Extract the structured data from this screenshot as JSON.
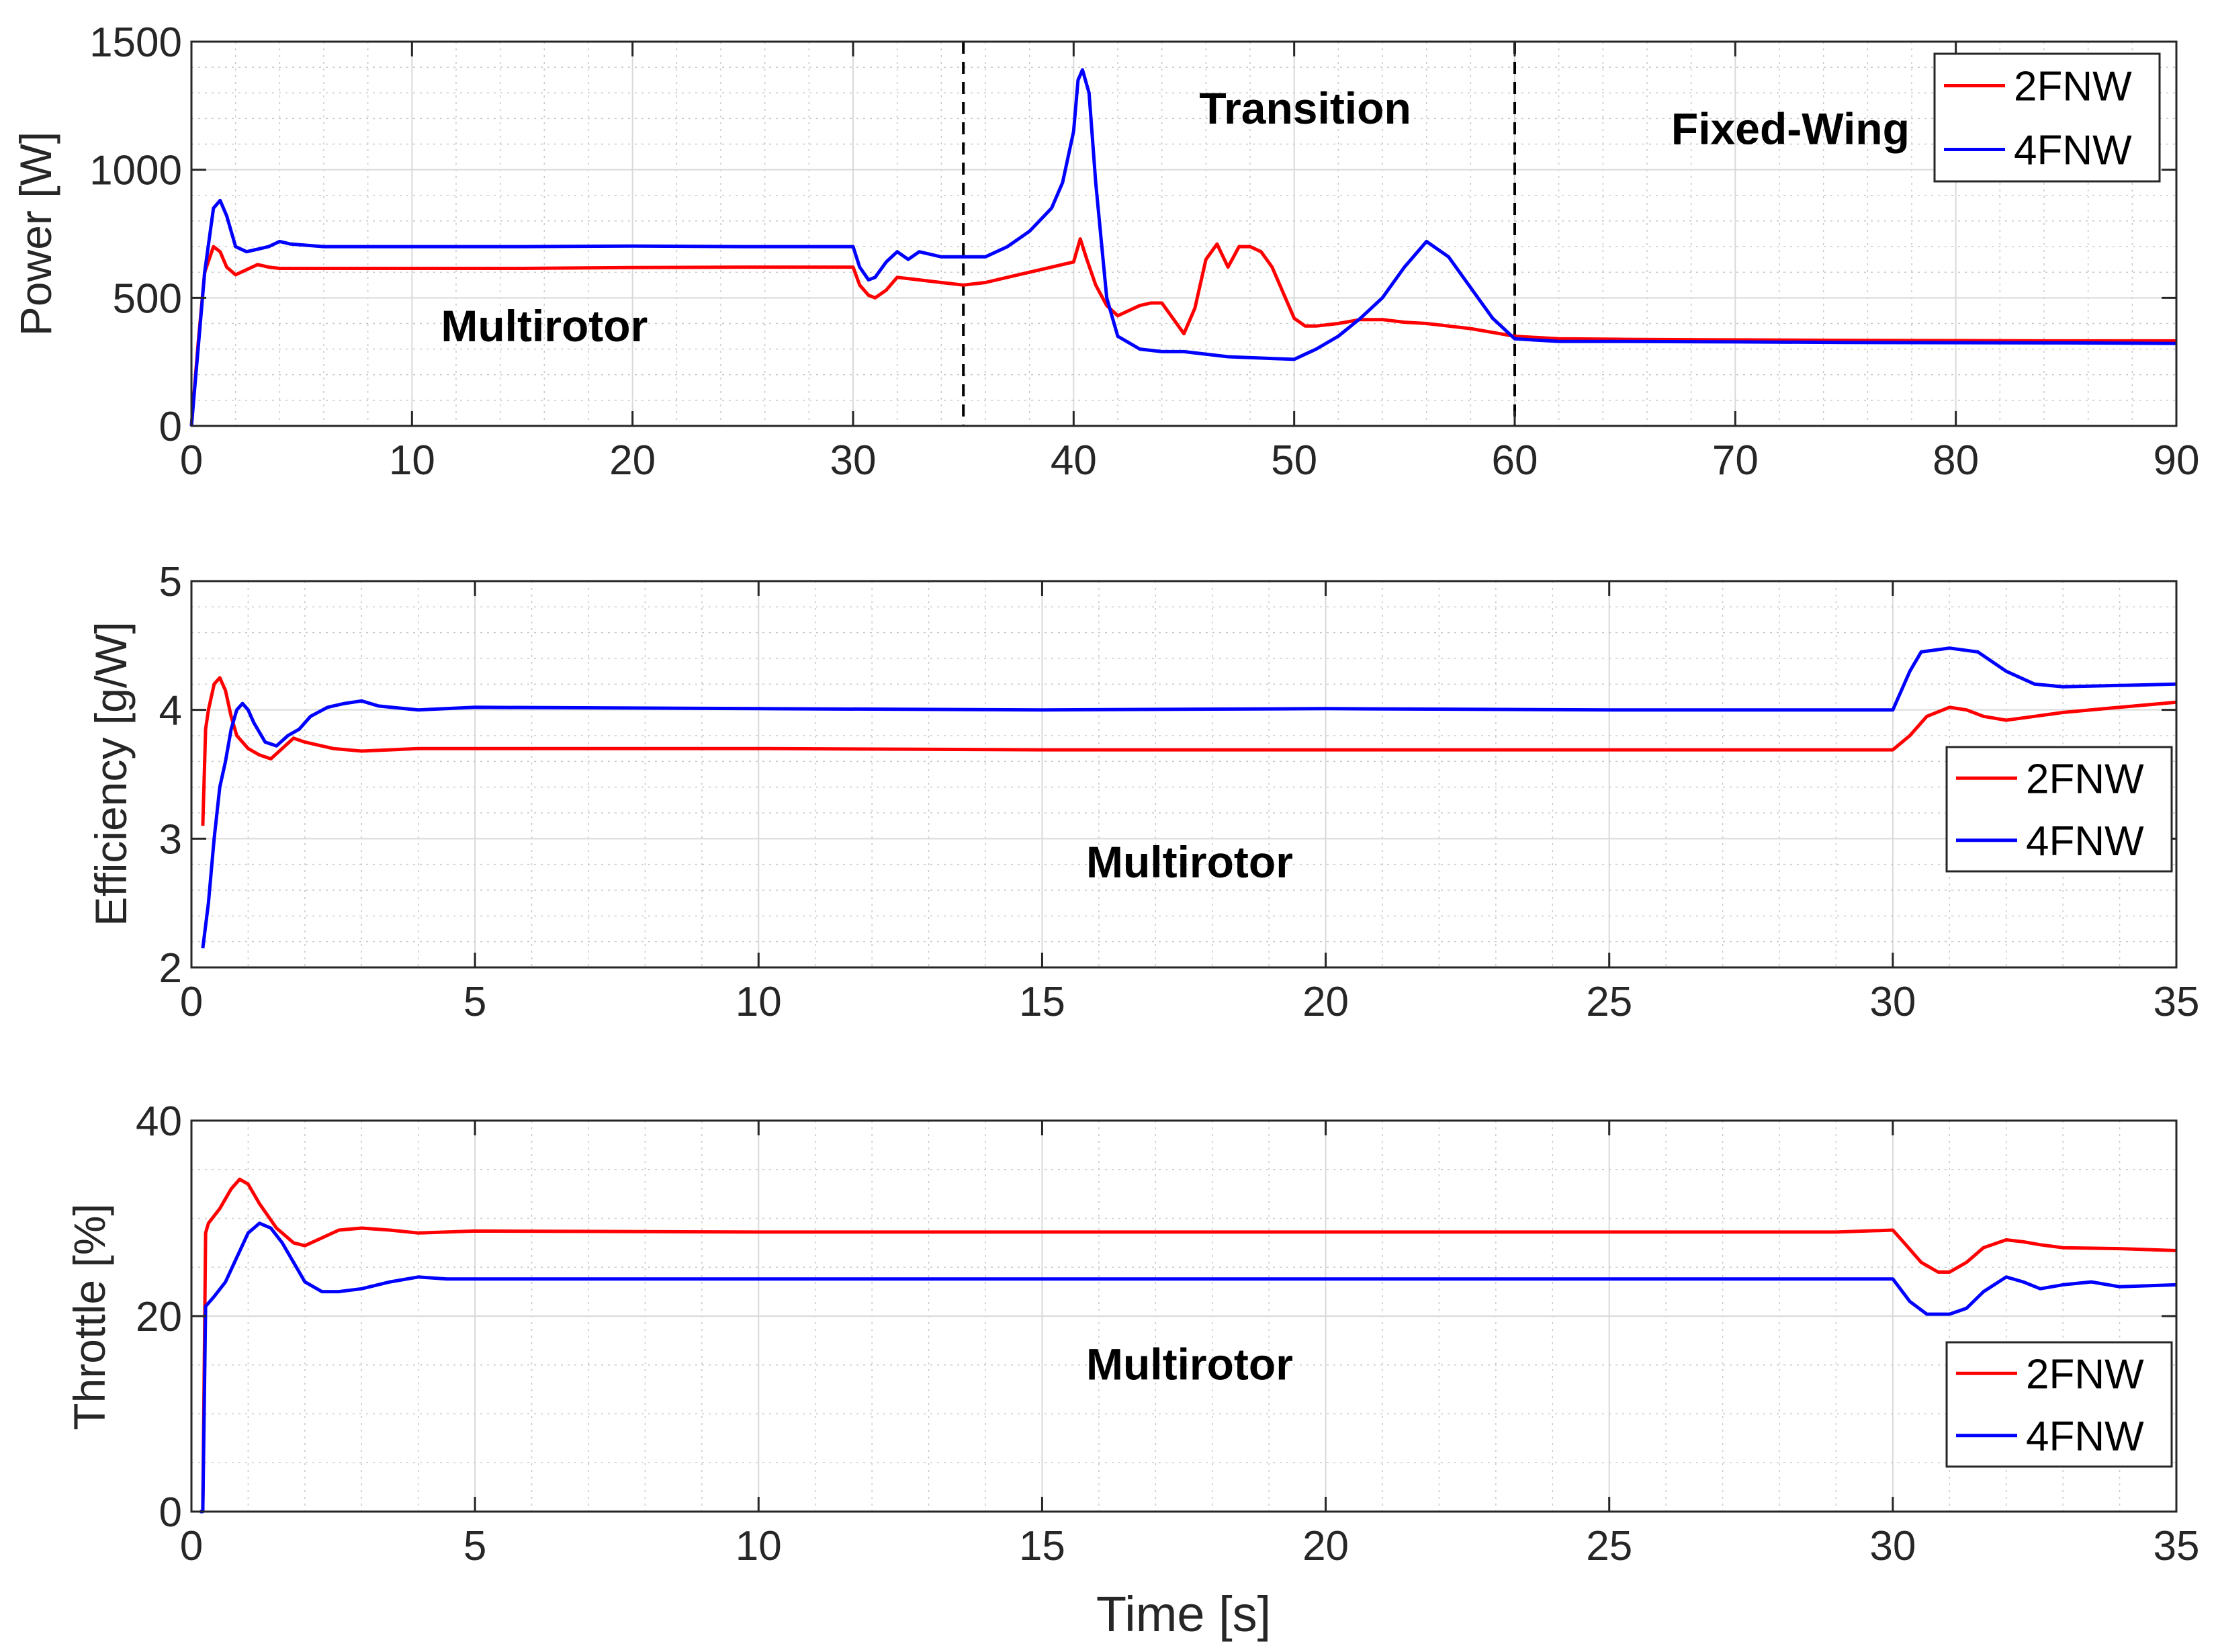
{
  "chart_data": [
    {
      "type": "line",
      "ylabel": "Power [W]",
      "xlabel": "",
      "xlim": [
        0,
        90
      ],
      "ylim": [
        0,
        1500
      ],
      "xticks": [
        "0",
        "10",
        "20",
        "30",
        "40",
        "50",
        "60",
        "70",
        "80",
        "90"
      ],
      "yticks": [
        "0",
        "500",
        "1000",
        "1500"
      ],
      "grid": true,
      "legend_location": "top-right",
      "vertical_lines": [
        35,
        60
      ],
      "annotations": [
        {
          "text": "Multirotor",
          "x": 16,
          "y": 330
        },
        {
          "text": "Transition",
          "x": 50.5,
          "y": 1180
        },
        {
          "text": "Fixed-Wing",
          "x": 72.5,
          "y": 1100
        }
      ],
      "series": [
        {
          "name": "2FNW",
          "color": "#ff0000",
          "x": [
            0,
            0.3,
            0.6,
            1,
            1.3,
            1.6,
            2,
            2.5,
            3,
            3.5,
            4,
            6,
            10,
            15,
            20,
            25,
            29,
            30,
            30.3,
            30.7,
            31,
            31.5,
            32,
            33,
            34,
            35,
            36,
            37,
            38,
            39,
            40,
            40.3,
            40.6,
            41,
            41.5,
            42,
            42.5,
            43,
            43.5,
            44,
            44.5,
            45,
            45.5,
            46,
            46.5,
            47,
            47.5,
            48,
            48.5,
            49,
            50,
            50.5,
            51,
            52,
            53,
            54,
            55,
            56,
            57,
            58,
            59,
            60,
            62,
            65,
            70,
            75,
            80,
            85,
            90
          ],
          "values": [
            0,
            320,
            600,
            700,
            680,
            620,
            590,
            610,
            630,
            620,
            615,
            615,
            615,
            615,
            618,
            620,
            620,
            620,
            550,
            510,
            500,
            530,
            580,
            570,
            560,
            550,
            560,
            580,
            600,
            620,
            640,
            730,
            650,
            550,
            470,
            430,
            450,
            470,
            480,
            480,
            420,
            360,
            460,
            650,
            710,
            620,
            700,
            700,
            680,
            620,
            420,
            390,
            390,
            400,
            415,
            415,
            405,
            400,
            390,
            380,
            365,
            350,
            340,
            338,
            336,
            334,
            333,
            332,
            332
          ]
        },
        {
          "name": "4FNW",
          "color": "#0000ff",
          "x": [
            0,
            0.3,
            0.6,
            1,
            1.3,
            1.6,
            2,
            2.5,
            3,
            3.5,
            4,
            4.5,
            6,
            10,
            15,
            20,
            25,
            29,
            30,
            30.3,
            30.7,
            31,
            31.5,
            32,
            32.5,
            33,
            34,
            35,
            36,
            37,
            38,
            39,
            39.5,
            40,
            40.2,
            40.4,
            40.7,
            41,
            41.5,
            42,
            43,
            44,
            45,
            47,
            50,
            50.5,
            51,
            52,
            53,
            54,
            55,
            56,
            57,
            58,
            59,
            60,
            62,
            65,
            70,
            75,
            80,
            85,
            90
          ],
          "values": [
            0,
            300,
            600,
            850,
            880,
            820,
            700,
            680,
            690,
            700,
            720,
            710,
            700,
            700,
            700,
            702,
            700,
            700,
            700,
            620,
            570,
            580,
            640,
            680,
            650,
            680,
            660,
            660,
            660,
            700,
            760,
            850,
            950,
            1150,
            1350,
            1390,
            1300,
            950,
            500,
            350,
            300,
            290,
            290,
            270,
            260,
            280,
            300,
            350,
            420,
            500,
            620,
            720,
            660,
            540,
            420,
            340,
            330,
            330,
            328,
            326,
            325,
            324,
            322
          ]
        }
      ]
    },
    {
      "type": "line",
      "ylabel": "Efficiency [g/W]",
      "xlabel": "",
      "xlim": [
        0,
        35
      ],
      "ylim": [
        2,
        5
      ],
      "xticks": [
        "0",
        "5",
        "10",
        "15",
        "20",
        "25",
        "30",
        "35"
      ],
      "yticks": [
        "2",
        "3",
        "4",
        "5"
      ],
      "grid": true,
      "legend_location": "right-middle",
      "annotations": [
        {
          "text": "Multirotor",
          "x": 17.6,
          "y": 2.7
        }
      ],
      "series": [
        {
          "name": "2FNW",
          "color": "#ff0000",
          "x": [
            0.2,
            0.25,
            0.3,
            0.4,
            0.5,
            0.6,
            0.7,
            0.8,
            0.9,
            1.0,
            1.2,
            1.4,
            1.6,
            1.8,
            2.0,
            2.5,
            3,
            4,
            5,
            10,
            15,
            20,
            25,
            29,
            30,
            30.3,
            30.6,
            31,
            31.3,
            31.6,
            32,
            32.5,
            33,
            34,
            35
          ],
          "values": [
            3.1,
            3.85,
            4.0,
            4.2,
            4.25,
            4.15,
            3.95,
            3.8,
            3.75,
            3.7,
            3.65,
            3.62,
            3.7,
            3.78,
            3.75,
            3.7,
            3.68,
            3.7,
            3.7,
            3.7,
            3.69,
            3.69,
            3.69,
            3.69,
            3.69,
            3.8,
            3.95,
            4.02,
            4.0,
            3.95,
            3.92,
            3.95,
            3.98,
            4.02,
            4.06
          ]
        },
        {
          "name": "4FNW",
          "color": "#0000ff",
          "x": [
            0.2,
            0.3,
            0.4,
            0.5,
            0.6,
            0.7,
            0.8,
            0.9,
            1.0,
            1.1,
            1.3,
            1.5,
            1.7,
            1.9,
            2.1,
            2.4,
            2.7,
            3.0,
            3.3,
            4,
            5,
            10,
            15,
            20,
            25,
            29,
            30,
            30.3,
            30.5,
            31,
            31.5,
            32,
            32.5,
            33,
            34,
            35
          ],
          "values": [
            2.15,
            2.5,
            3.0,
            3.4,
            3.6,
            3.85,
            4.0,
            4.05,
            4.0,
            3.9,
            3.75,
            3.72,
            3.8,
            3.85,
            3.95,
            4.02,
            4.05,
            4.07,
            4.03,
            4.0,
            4.02,
            4.01,
            4.0,
            4.01,
            4.0,
            4.0,
            4.0,
            4.3,
            4.45,
            4.48,
            4.45,
            4.3,
            4.2,
            4.18,
            4.19,
            4.2
          ]
        }
      ]
    },
    {
      "type": "line",
      "ylabel": "Throttle [%]",
      "xlabel": "Time [s]",
      "xlim": [
        0,
        35
      ],
      "ylim": [
        0,
        40
      ],
      "xticks": [
        "0",
        "5",
        "10",
        "15",
        "20",
        "25",
        "30",
        "35"
      ],
      "yticks": [
        "0",
        "20",
        "40"
      ],
      "grid": true,
      "legend_location": "bottom-right",
      "annotations": [
        {
          "text": "Multirotor",
          "x": 17.6,
          "y": 13.5
        }
      ],
      "series": [
        {
          "name": "2FNW",
          "color": "#ff0000",
          "x": [
            0.2,
            0.25,
            0.3,
            0.5,
            0.7,
            0.85,
            1.0,
            1.2,
            1.5,
            1.8,
            2.0,
            2.3,
            2.6,
            3.0,
            3.5,
            4,
            5,
            10,
            15,
            20,
            25,
            29,
            30,
            30.2,
            30.5,
            30.8,
            31.0,
            31.3,
            31.6,
            32,
            32.3,
            32.6,
            33,
            34,
            35
          ],
          "values": [
            0,
            28.5,
            29.5,
            31,
            33,
            34,
            33.5,
            31.5,
            29,
            27.5,
            27.2,
            28,
            28.8,
            29.0,
            28.8,
            28.5,
            28.7,
            28.6,
            28.6,
            28.6,
            28.6,
            28.6,
            28.8,
            27.5,
            25.5,
            24.5,
            24.5,
            25.5,
            27.0,
            27.8,
            27.6,
            27.3,
            27.0,
            26.9,
            26.7
          ]
        },
        {
          "name": "4FNW",
          "color": "#0000ff",
          "x": [
            0.15,
            0.2,
            0.25,
            0.4,
            0.6,
            0.8,
            1.0,
            1.2,
            1.4,
            1.6,
            1.8,
            2.0,
            2.3,
            2.6,
            3.0,
            3.5,
            4.0,
            4.5,
            5,
            10,
            15,
            20,
            25,
            29,
            30,
            30.3,
            30.6,
            31.0,
            31.3,
            31.6,
            32,
            32.3,
            32.6,
            33,
            33.5,
            34,
            35
          ],
          "values": [
            0,
            0,
            21,
            22,
            23.5,
            26,
            28.5,
            29.5,
            29,
            27.5,
            25.5,
            23.5,
            22.5,
            22.5,
            22.8,
            23.5,
            24,
            23.8,
            23.8,
            23.8,
            23.8,
            23.8,
            23.8,
            23.8,
            23.8,
            21.5,
            20.2,
            20.2,
            20.8,
            22.5,
            24,
            23.5,
            22.8,
            23.2,
            23.5,
            23.0,
            23.2
          ]
        }
      ]
    }
  ]
}
